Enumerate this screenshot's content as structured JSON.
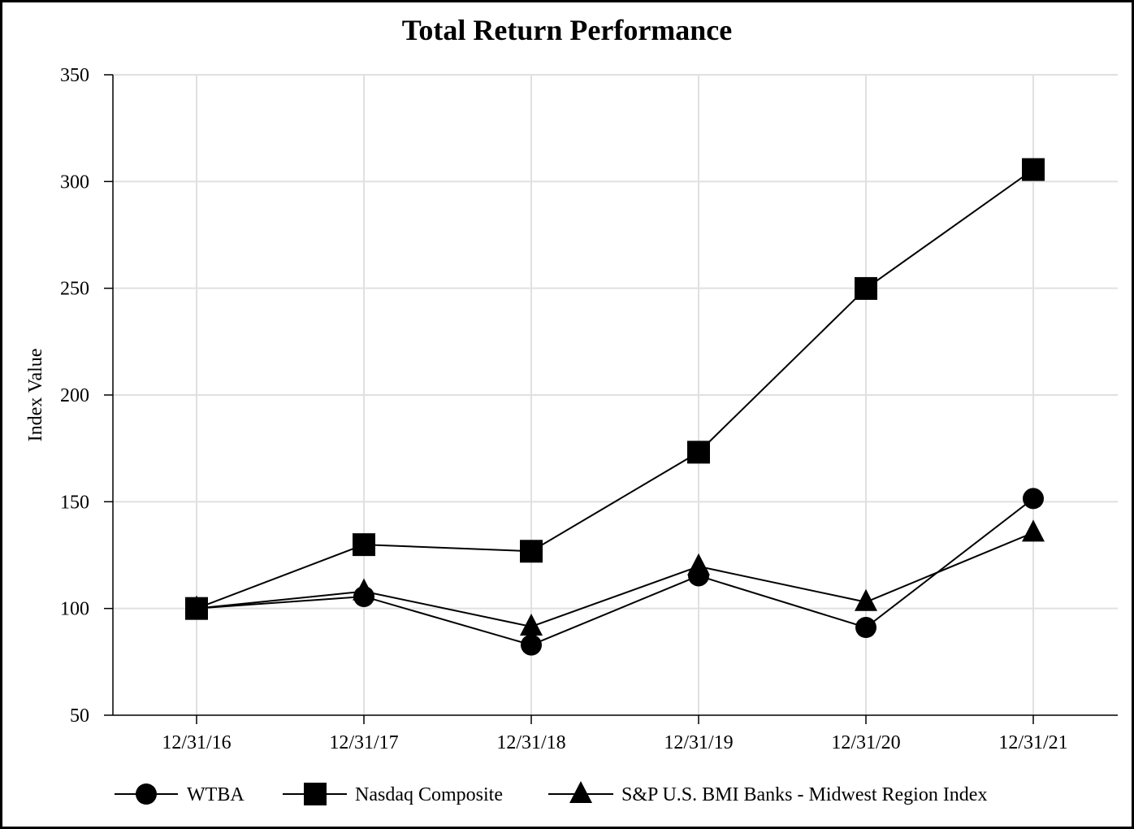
{
  "chart_data": {
    "type": "line",
    "title": "Total Return Performance",
    "xlabel": "",
    "ylabel": "Index Value",
    "categories": [
      "12/31/16",
      "12/31/17",
      "12/31/18",
      "12/31/19",
      "12/31/20",
      "12/31/21"
    ],
    "ylim": [
      50,
      350
    ],
    "yticks": [
      50,
      100,
      150,
      200,
      250,
      300,
      350
    ],
    "grid": true,
    "legend_position": "bottom",
    "series": [
      {
        "name": "WTBA",
        "marker": "circle",
        "values": [
          100,
          105.6,
          82.9,
          115.3,
          91.1,
          151.5
        ]
      },
      {
        "name": "Nasdaq Composite",
        "marker": "square",
        "values": [
          100,
          129.9,
          126.8,
          173.2,
          249.9,
          305.6
        ]
      },
      {
        "name": "S&P U.S. BMI Banks - Midwest Region Index",
        "marker": "triangle",
        "values": [
          100,
          108.0,
          91.5,
          119.7,
          103.0,
          135.5
        ]
      }
    ],
    "colors": {
      "line": "#000000",
      "marker": "#000000",
      "grid": "#e0e0e0",
      "axis": "#000000"
    }
  }
}
